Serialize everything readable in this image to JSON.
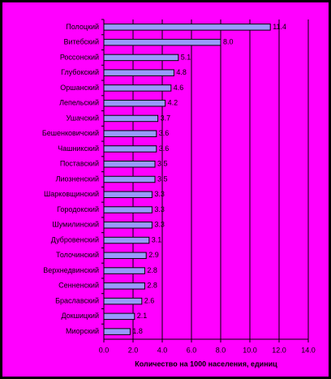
{
  "chart_data": {
    "type": "hbar",
    "x_label": "Количество на 1000 населения, единиц",
    "categories": [
      "Полоцкий",
      "Витебский",
      "Россонский",
      "Глубокский",
      "Оршанский",
      "Лепельский",
      "Ушачский",
      "Бешенковичский",
      "Чашникский",
      "Поставский",
      "Лиозненский",
      "Шарковщинский",
      "Городокский",
      "Шумилинский",
      "Дубровенский",
      "Толочинский",
      "Верхнедвинский",
      "Сенненский",
      "Браславский",
      "Докшицкий",
      "Миорский"
    ],
    "values": [
      11.4,
      8.0,
      5.1,
      4.8,
      4.6,
      4.2,
      3.7,
      3.6,
      3.6,
      3.5,
      3.5,
      3.3,
      3.3,
      3.3,
      3.1,
      2.9,
      2.8,
      2.8,
      2.6,
      2.1,
      1.8
    ],
    "value_labels": [
      "11.4",
      "8.0",
      "5.1",
      "4.8",
      "4.6",
      "4.2",
      "3.7",
      "3.6",
      "3.6",
      "3.5",
      "3.5",
      "3.3",
      "3.3",
      "3.3",
      "3.1",
      "2.9",
      "2.8",
      "2.8",
      "2.6",
      "2.1",
      "1.8"
    ],
    "color": "#9999ff",
    "xlim": [
      0,
      14
    ],
    "xticks": [
      {
        "value": 0,
        "label": "0.0"
      },
      {
        "value": 2,
        "label": "2.0"
      },
      {
        "value": 4,
        "label": "4.0"
      },
      {
        "value": 6,
        "label": "6.0"
      },
      {
        "value": 8,
        "label": "8.0"
      },
      {
        "value": 10,
        "label": "10.0"
      },
      {
        "value": 12,
        "label": "12.0"
      },
      {
        "value": 14,
        "label": "14.0"
      }
    ],
    "grid": true
  }
}
